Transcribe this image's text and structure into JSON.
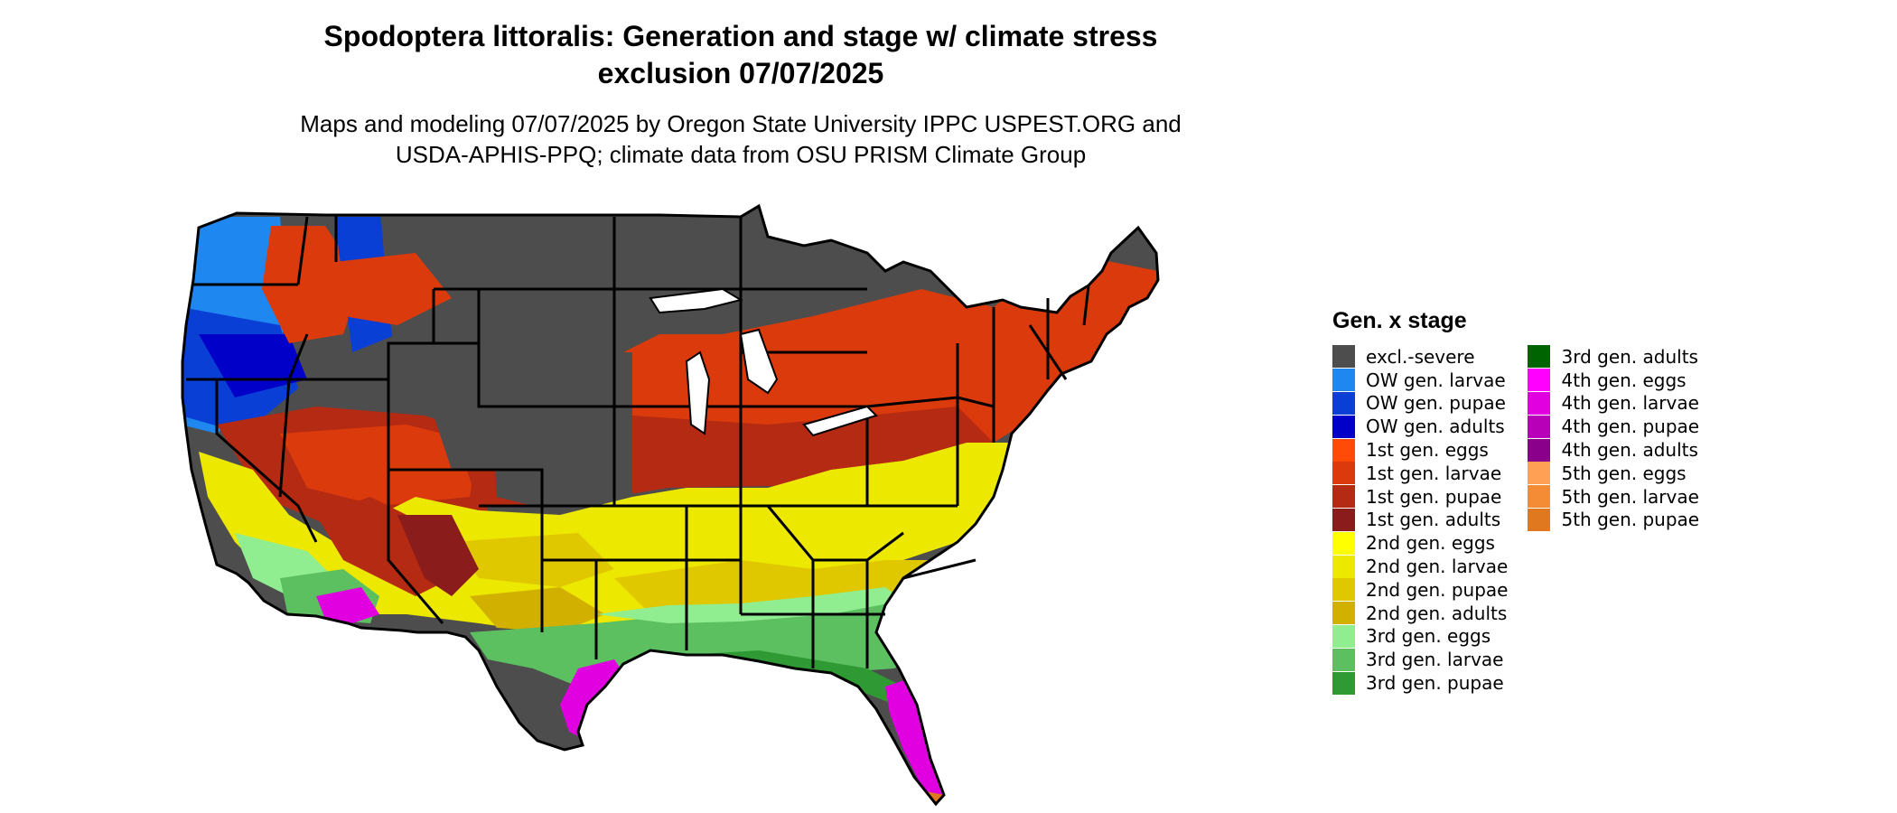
{
  "title_line1": "Spodoptera littoralis: Generation and stage w/ climate stress",
  "title_line2": "exclusion 07/07/2025",
  "subtitle_line1": "Maps and modeling 07/07/2025 by Oregon State University IPPC USPEST.ORG and",
  "subtitle_line2": "USDA-APHIS-PPQ; climate data from OSU PRISM Climate Group",
  "legend": {
    "title": "Gen. x stage",
    "items": [
      {
        "label": "excl.-severe",
        "color": "#4d4d4d"
      },
      {
        "label": "OW gen. larvae",
        "color": "#1e88f0"
      },
      {
        "label": "OW gen. pupae",
        "color": "#0a3fd6"
      },
      {
        "label": "OW gen. adults",
        "color": "#0000c8"
      },
      {
        "label": "1st gen. eggs",
        "color": "#ff4a08"
      },
      {
        "label": "1st gen. larvae",
        "color": "#db3a0c"
      },
      {
        "label": "1st gen. pupae",
        "color": "#b42a12"
      },
      {
        "label": "1st gen. adults",
        "color": "#8b1c1c"
      },
      {
        "label": "2nd gen. eggs",
        "color": "#ffff00"
      },
      {
        "label": "2nd gen. larvae",
        "color": "#ece800"
      },
      {
        "label": "2nd gen. pupae",
        "color": "#e0c800"
      },
      {
        "label": "2nd gen. adults",
        "color": "#d2b000"
      },
      {
        "label": "3rd gen. eggs",
        "color": "#90ee90"
      },
      {
        "label": "3rd gen. larvae",
        "color": "#5cbf60"
      },
      {
        "label": "3rd gen. pupae",
        "color": "#2f9a34"
      },
      {
        "label": "3rd gen. adults",
        "color": "#006400"
      },
      {
        "label": "4th gen. eggs",
        "color": "#ff00ff"
      },
      {
        "label": "4th gen. larvae",
        "color": "#e000e0"
      },
      {
        "label": "4th gen. pupae",
        "color": "#b800b8"
      },
      {
        "label": "4th gen. adults",
        "color": "#8b008b"
      },
      {
        "label": "5th gen. eggs",
        "color": "#ffa055"
      },
      {
        "label": "5th gen. larvae",
        "color": "#f38c34"
      },
      {
        "label": "5th gen. pupae",
        "color": "#e07820"
      }
    ]
  }
}
